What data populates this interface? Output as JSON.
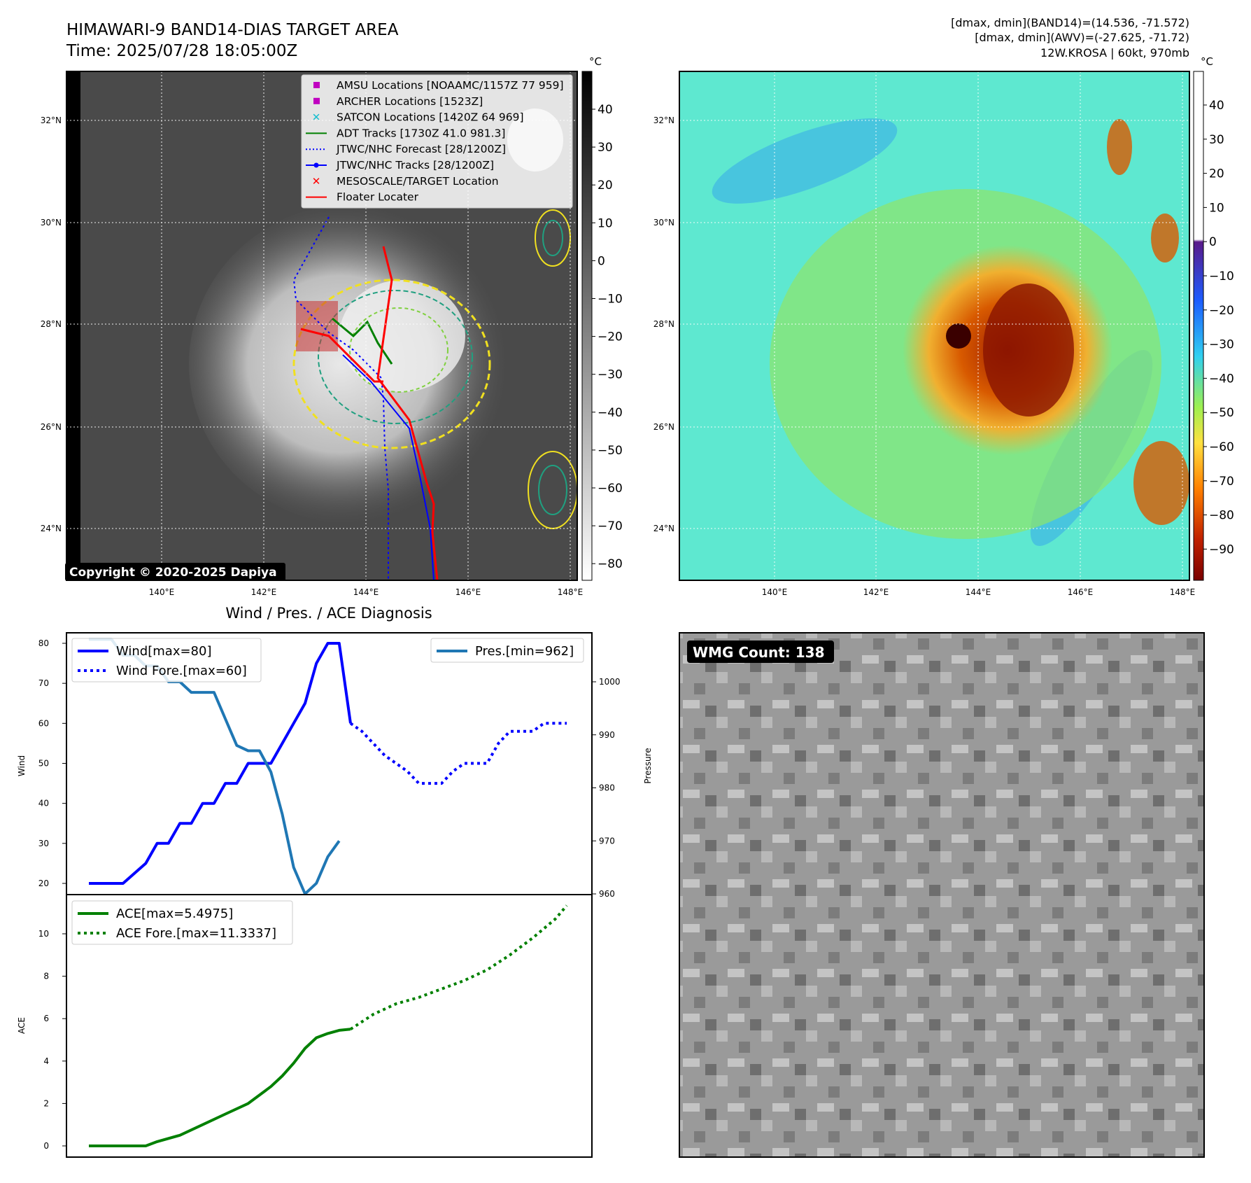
{
  "header": {
    "title": "HIMAWARI-9 BAND14-DIAS TARGET AREA",
    "time": "Time: 2025/07/28 18:05:00Z",
    "dmax_band14": "[dmax, dmin](BAND14)=(14.536, -71.572)",
    "dmax_awv": "[dmax, dmin](AWV)=(-27.625, -71.72)",
    "storm": "12W.KROSA | 60kt, 970mb"
  },
  "map": {
    "lat_labels": [
      "32°N",
      "30°N",
      "28°N",
      "26°N",
      "24°N"
    ],
    "lon_labels": [
      "140°E",
      "142°E",
      "144°E",
      "146°E",
      "148°E"
    ],
    "copyright": "Copyright © 2020-2025 Dapiya",
    "unit": "°C",
    "ir_ticks": [
      "40",
      "30",
      "20",
      "10",
      "0",
      "−10",
      "−20",
      "−30",
      "−40",
      "−50",
      "−60",
      "−70",
      "−80"
    ],
    "wv_ticks": [
      "40",
      "30",
      "20",
      "10",
      "0",
      "−10",
      "−20",
      "−30",
      "−40",
      "−50",
      "−60",
      "−70",
      "−80",
      "−90"
    ],
    "legend": [
      {
        "label": "AMSU Locations [NOAAMC/1157Z 77 959]",
        "color": "#c000c0",
        "marker": "square"
      },
      {
        "label": "ARCHER Locations [1523Z]",
        "color": "#c000c0",
        "marker": "square"
      },
      {
        "label": "SATCON Locations [1420Z 64 969]",
        "color": "#17becf",
        "marker": "x"
      },
      {
        "label": "ADT Tracks [1730Z 41.0 981.3]",
        "color": "#008000",
        "marker": "line"
      },
      {
        "label": "JTWC/NHC Forecast [28/1200Z]",
        "color": "#0000ff",
        "marker": "dotted"
      },
      {
        "label": "JTWC/NHC Tracks [28/1200Z]",
        "color": "#0000ff",
        "marker": "line-dot"
      },
      {
        "label": "MESOSCALE/TARGET Location",
        "color": "#ff0000",
        "marker": "x"
      },
      {
        "label": "Floater Locater",
        "color": "#ff0000",
        "marker": "line"
      }
    ]
  },
  "wmg": {
    "label": "WMG Count: 138"
  },
  "chart_data": [
    {
      "type": "line",
      "title": "Wind / Pres. / ACE Diagnosis",
      "ylabel": "Wind",
      "y2label": "Pressure",
      "ylim": [
        18,
        82
      ],
      "y2lim": [
        960,
        1010
      ],
      "yticks": [
        20,
        30,
        40,
        50,
        60,
        70,
        80
      ],
      "y2ticks": [
        960,
        970,
        980,
        990,
        1000
      ],
      "legend_left": "top-left",
      "legend_right": "top-right",
      "series": [
        {
          "name": "Wind[max=80]",
          "axis": "left",
          "style": "solid",
          "color": "#0000ff",
          "x": [
            0,
            3,
            5,
            6,
            7,
            8,
            9,
            10,
            11,
            12,
            13,
            14,
            15,
            16,
            17,
            18,
            19,
            20,
            21,
            22,
            23
          ],
          "y": [
            20,
            20,
            25,
            30,
            30,
            35,
            35,
            40,
            40,
            45,
            45,
            50,
            50,
            50,
            55,
            60,
            65,
            75,
            80,
            80,
            60
          ]
        },
        {
          "name": "Wind Fore.[max=60]",
          "axis": "left",
          "style": "dotted",
          "color": "#0000ff",
          "x": [
            23,
            24,
            25,
            26,
            27,
            28,
            29,
            30,
            31,
            32,
            33,
            34,
            35,
            36,
            37,
            38,
            39,
            40,
            41,
            42
          ],
          "y": [
            60,
            58,
            55,
            52,
            50,
            48,
            45,
            45,
            45,
            48,
            50,
            50,
            50,
            55,
            58,
            58,
            58,
            60,
            60,
            60
          ]
        },
        {
          "name": "Pres.[min=962]",
          "axis": "right",
          "style": "solid",
          "color": "#1f77b4",
          "x": [
            0,
            2,
            3,
            4,
            5,
            6,
            7,
            8,
            9,
            10,
            11,
            12,
            13,
            14,
            15,
            16,
            17,
            18,
            19,
            20,
            21,
            22
          ],
          "y": [
            1008,
            1008,
            1005,
            1005,
            1003,
            1003,
            1000,
            1000,
            998,
            998,
            998,
            993,
            988,
            987,
            987,
            983,
            975,
            965,
            960,
            962,
            967,
            970
          ]
        }
      ]
    },
    {
      "type": "line",
      "ylabel": "ACE",
      "ylim": [
        -0.3,
        11.9
      ],
      "yticks": [
        0,
        2,
        4,
        6,
        8,
        10
      ],
      "legend": "top-left",
      "series": [
        {
          "name": "ACE[max=5.4975]",
          "style": "solid",
          "color": "#008000",
          "x": [
            0,
            3,
            5,
            6,
            8,
            10,
            12,
            14,
            16,
            17,
            18,
            19,
            20,
            21,
            22,
            23
          ],
          "y": [
            0,
            0,
            0,
            0.2,
            0.5,
            1,
            1.5,
            2.0,
            2.8,
            3.3,
            3.9,
            4.6,
            5.1,
            5.3,
            5.45,
            5.5
          ]
        },
        {
          "name": "ACE Fore.[max=11.3337]",
          "style": "dotted",
          "color": "#008000",
          "x": [
            23,
            25,
            27,
            29,
            31,
            33,
            35,
            37,
            39,
            41,
            42
          ],
          "y": [
            5.5,
            6.2,
            6.7,
            7.0,
            7.4,
            7.8,
            8.3,
            9.0,
            9.8,
            10.7,
            11.33
          ]
        }
      ]
    }
  ]
}
